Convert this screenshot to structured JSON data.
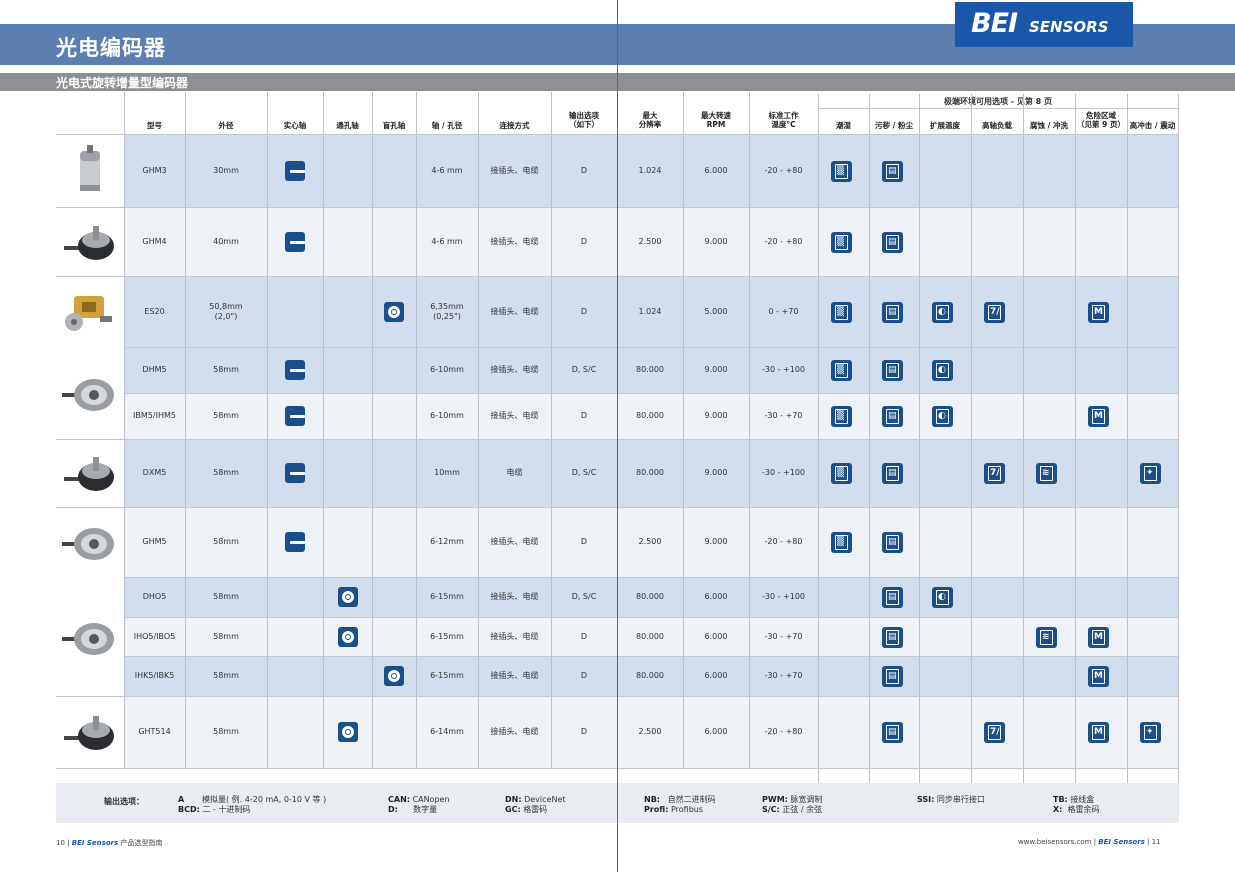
{
  "title": "光电编码器",
  "subtitle": "光电式旋转增量型编码器",
  "logo": {
    "bei": "BEI",
    "sensors": "SENSORS"
  },
  "group_header": "极端环境可用选项 - 见第 8 页",
  "headers": [
    "型号",
    "外径",
    "实心轴",
    "通孔轴",
    "盲孔轴",
    "轴 / 孔径",
    "连接方式",
    "输出选项\n（如下）",
    "最大\n分辨率",
    "最大转速\nRPM",
    "标准工作\n温度°C",
    "潮湿",
    "污秽 / 粉尘",
    "扩展温度",
    "高轴负载",
    "腐蚀 / 冲洗",
    "危险区域\n（见第 9 页）",
    "高冲击 / 震动"
  ],
  "rows": [
    {
      "model": "GHM3",
      "diameter": "30mm",
      "shaft": "solid",
      "bore": "4-6 mm",
      "connection": "接插头、电缆",
      "output": "D",
      "resolution": "1.024",
      "rpm": "6.000",
      "temp": "-20 - +80",
      "env": [
        1,
        1,
        0,
        0,
        0,
        0,
        0
      ]
    },
    {
      "model": "GHM4",
      "diameter": "40mm",
      "shaft": "solid",
      "bore": "4-6 mm",
      "connection": "接插头、电缆",
      "output": "D",
      "resolution": "2.500",
      "rpm": "9.000",
      "temp": "-20 - +80",
      "env": [
        1,
        1,
        0,
        0,
        0,
        0,
        0
      ]
    },
    {
      "model": "ES20",
      "diameter": "50,8mm\n(2,0\")",
      "shaft": "blind",
      "bore": "6,35mm\n(0,25\")",
      "connection": "接插头、电缆",
      "output": "D",
      "resolution": "1.024",
      "rpm": "5.000",
      "temp": "0 - +70",
      "env": [
        1,
        1,
        1,
        1,
        0,
        1,
        0
      ]
    },
    {
      "model": "DHM5",
      "diameter": "58mm",
      "shaft": "solid",
      "bore": "6-10mm",
      "connection": "接插头、电缆",
      "output": "D, S/C",
      "resolution": "80.000",
      "rpm": "9.000",
      "temp": "-30 - +100",
      "env": [
        1,
        1,
        1,
        0,
        0,
        0,
        0
      ]
    },
    {
      "model": "IBM5/IHM5",
      "diameter": "58mm",
      "shaft": "solid",
      "bore": "6-10mm",
      "connection": "接插头、电缆",
      "output": "D",
      "resolution": "80.000",
      "rpm": "9.000",
      "temp": "-30 - +70",
      "env": [
        1,
        1,
        1,
        0,
        0,
        1,
        0
      ]
    },
    {
      "model": "DXM5",
      "diameter": "58mm",
      "shaft": "solid",
      "bore": "10mm",
      "connection": "电缆",
      "output": "D, S/C",
      "resolution": "80.000",
      "rpm": "9.000",
      "temp": "-30 - +100",
      "env": [
        1,
        1,
        0,
        1,
        1,
        0,
        1
      ]
    },
    {
      "model": "GHM5",
      "diameter": "58mm",
      "shaft": "solid",
      "bore": "6-12mm",
      "connection": "接插头、电缆",
      "output": "D",
      "resolution": "2.500",
      "rpm": "9.000",
      "temp": "-20 - +80",
      "env": [
        1,
        1,
        0,
        0,
        0,
        0,
        0
      ]
    },
    {
      "model": "DHO5",
      "diameter": "58mm",
      "shaft": "through",
      "bore": "6-15mm",
      "connection": "接插头、电缆",
      "output": "D, S/C",
      "resolution": "80.000",
      "rpm": "6.000",
      "temp": "-30 - +100",
      "env": [
        0,
        1,
        1,
        0,
        0,
        0,
        0
      ]
    },
    {
      "model": "IHO5/IBO5",
      "diameter": "58mm",
      "shaft": "through",
      "bore": "6-15mm",
      "connection": "接插头、电缆",
      "output": "D",
      "resolution": "80.000",
      "rpm": "6.000",
      "temp": "-30 - +70",
      "env": [
        0,
        1,
        0,
        0,
        1,
        1,
        0
      ]
    },
    {
      "model": "IHK5/IBK5",
      "diameter": "58mm",
      "shaft": "blind",
      "bore": "6-15mm",
      "connection": "接插头、电缆",
      "output": "D",
      "resolution": "80.000",
      "rpm": "6.000",
      "temp": "-30 - +70",
      "env": [
        0,
        1,
        0,
        0,
        0,
        1,
        0
      ]
    },
    {
      "model": "GHT514",
      "diameter": "58mm",
      "shaft": "through",
      "bore": "6-14mm",
      "connection": "接插头、电缆",
      "output": "D",
      "resolution": "2.500",
      "rpm": "6.000",
      "temp": "-20 - +80",
      "env": [
        0,
        1,
        0,
        1,
        0,
        1,
        1
      ]
    }
  ],
  "env_icons": [
    "humidity-icon",
    "dust-icon",
    "extended-temp-icon",
    "high-shaft-load-icon",
    "washdown-icon",
    "hazardous-area-icon",
    "shock-vibration-icon"
  ],
  "env_glyphs": [
    "▒",
    "▤",
    "◐",
    "7/",
    "≋",
    "M",
    "✦"
  ],
  "legend": {
    "label": "输出选项：",
    "a_code": "A",
    "a_text": "模拟量( 例. 4-20 mA, 0-10 V 等 )",
    "bcd_code": "BCD:",
    "bcd_text": "二 - 十进制码",
    "can_code": "CAN:",
    "can_text": "CANopen",
    "d_code": "D:",
    "d_text": "数字量",
    "dn_code": "DN:",
    "dn_text": "DeviceNet",
    "gc_code": "GC:",
    "gc_text": "格雷码",
    "nb_code": "NB:",
    "nb_text": "自然二进制码",
    "profi_code": "Profi:",
    "profi_text": "Profibus",
    "pwm_code": "PWM:",
    "pwm_text": "脉宽调制",
    "sc_code": "S/C:",
    "sc_text": "正弦 / 余弦",
    "ssi_code": "SSI:",
    "ssi_text": "同步串行接口",
    "tb_code": "TB:",
    "tb_text": "接线盒",
    "x_code": "X:",
    "x_text": "格雷余码"
  },
  "footer_left": {
    "page": "10",
    "brand": "BEI Sensors",
    "text": "产品选型指南"
  },
  "footer_right": {
    "url": "www.beisensors.com",
    "brand": "BEI Sensors",
    "page": "11"
  },
  "colors": {
    "blue_band": "#5b7fb0",
    "grey_band": "#8d8f92",
    "row_blue": "#d2ddee",
    "row_light": "#eef1f6",
    "icon": "#1b4f8a",
    "logo": "#1a57a8"
  }
}
